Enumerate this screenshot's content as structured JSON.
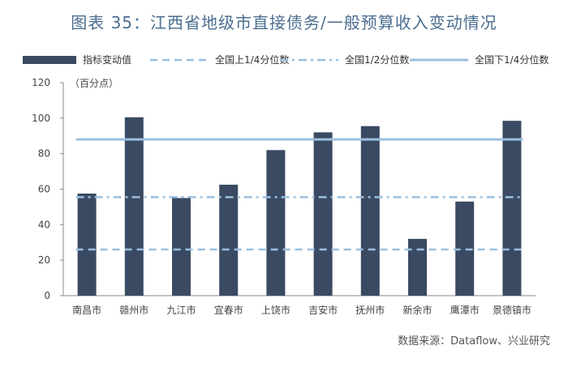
{
  "title": "图表 35：江西省地级市直接债务/一般预算收入变动情况",
  "source": "数据来源：Dataflow、兴业研究",
  "colors": {
    "bar": "#3b4a63",
    "upper_quartile": "#9bbfdf",
    "median": "#9bbfdf",
    "lower_quartile": "#9bbfdf",
    "title": "#4a6d8f"
  },
  "chart_data": {
    "type": "bar",
    "title": "图表 35：江西省地级市直接债务/一般预算收入变动情况",
    "unit_label": "（百分点）",
    "categories": [
      "南昌市",
      "赣州市",
      "九江市",
      "宜春市",
      "上饶市",
      "吉安市",
      "抚州市",
      "新余市",
      "鹰潭市",
      "景德镇市"
    ],
    "series": [
      {
        "name": "指标变动值",
        "type": "bar",
        "values": [
          57.5,
          100.5,
          55,
          62.5,
          82,
          92,
          95.5,
          32,
          53,
          98.5
        ]
      },
      {
        "name": "全国上1/4分位数",
        "type": "line",
        "style": "dashed",
        "values": [
          26,
          26,
          26,
          26,
          26,
          26,
          26,
          26,
          26,
          26
        ]
      },
      {
        "name": "全国1/2分位数",
        "type": "line",
        "style": "dash-dot",
        "values": [
          55.5,
          55.5,
          55.5,
          55.5,
          55.5,
          55.5,
          55.5,
          55.5,
          55.5,
          55.5
        ]
      },
      {
        "name": "全国下1/4分位数",
        "type": "line",
        "style": "solid",
        "values": [
          88,
          88,
          88,
          88,
          88,
          88,
          88,
          88,
          88,
          88
        ]
      }
    ],
    "ylim": [
      0,
      120
    ],
    "yticks": [
      0,
      20,
      40,
      60,
      80,
      100,
      120
    ],
    "legend_position": "top",
    "grid": false
  }
}
